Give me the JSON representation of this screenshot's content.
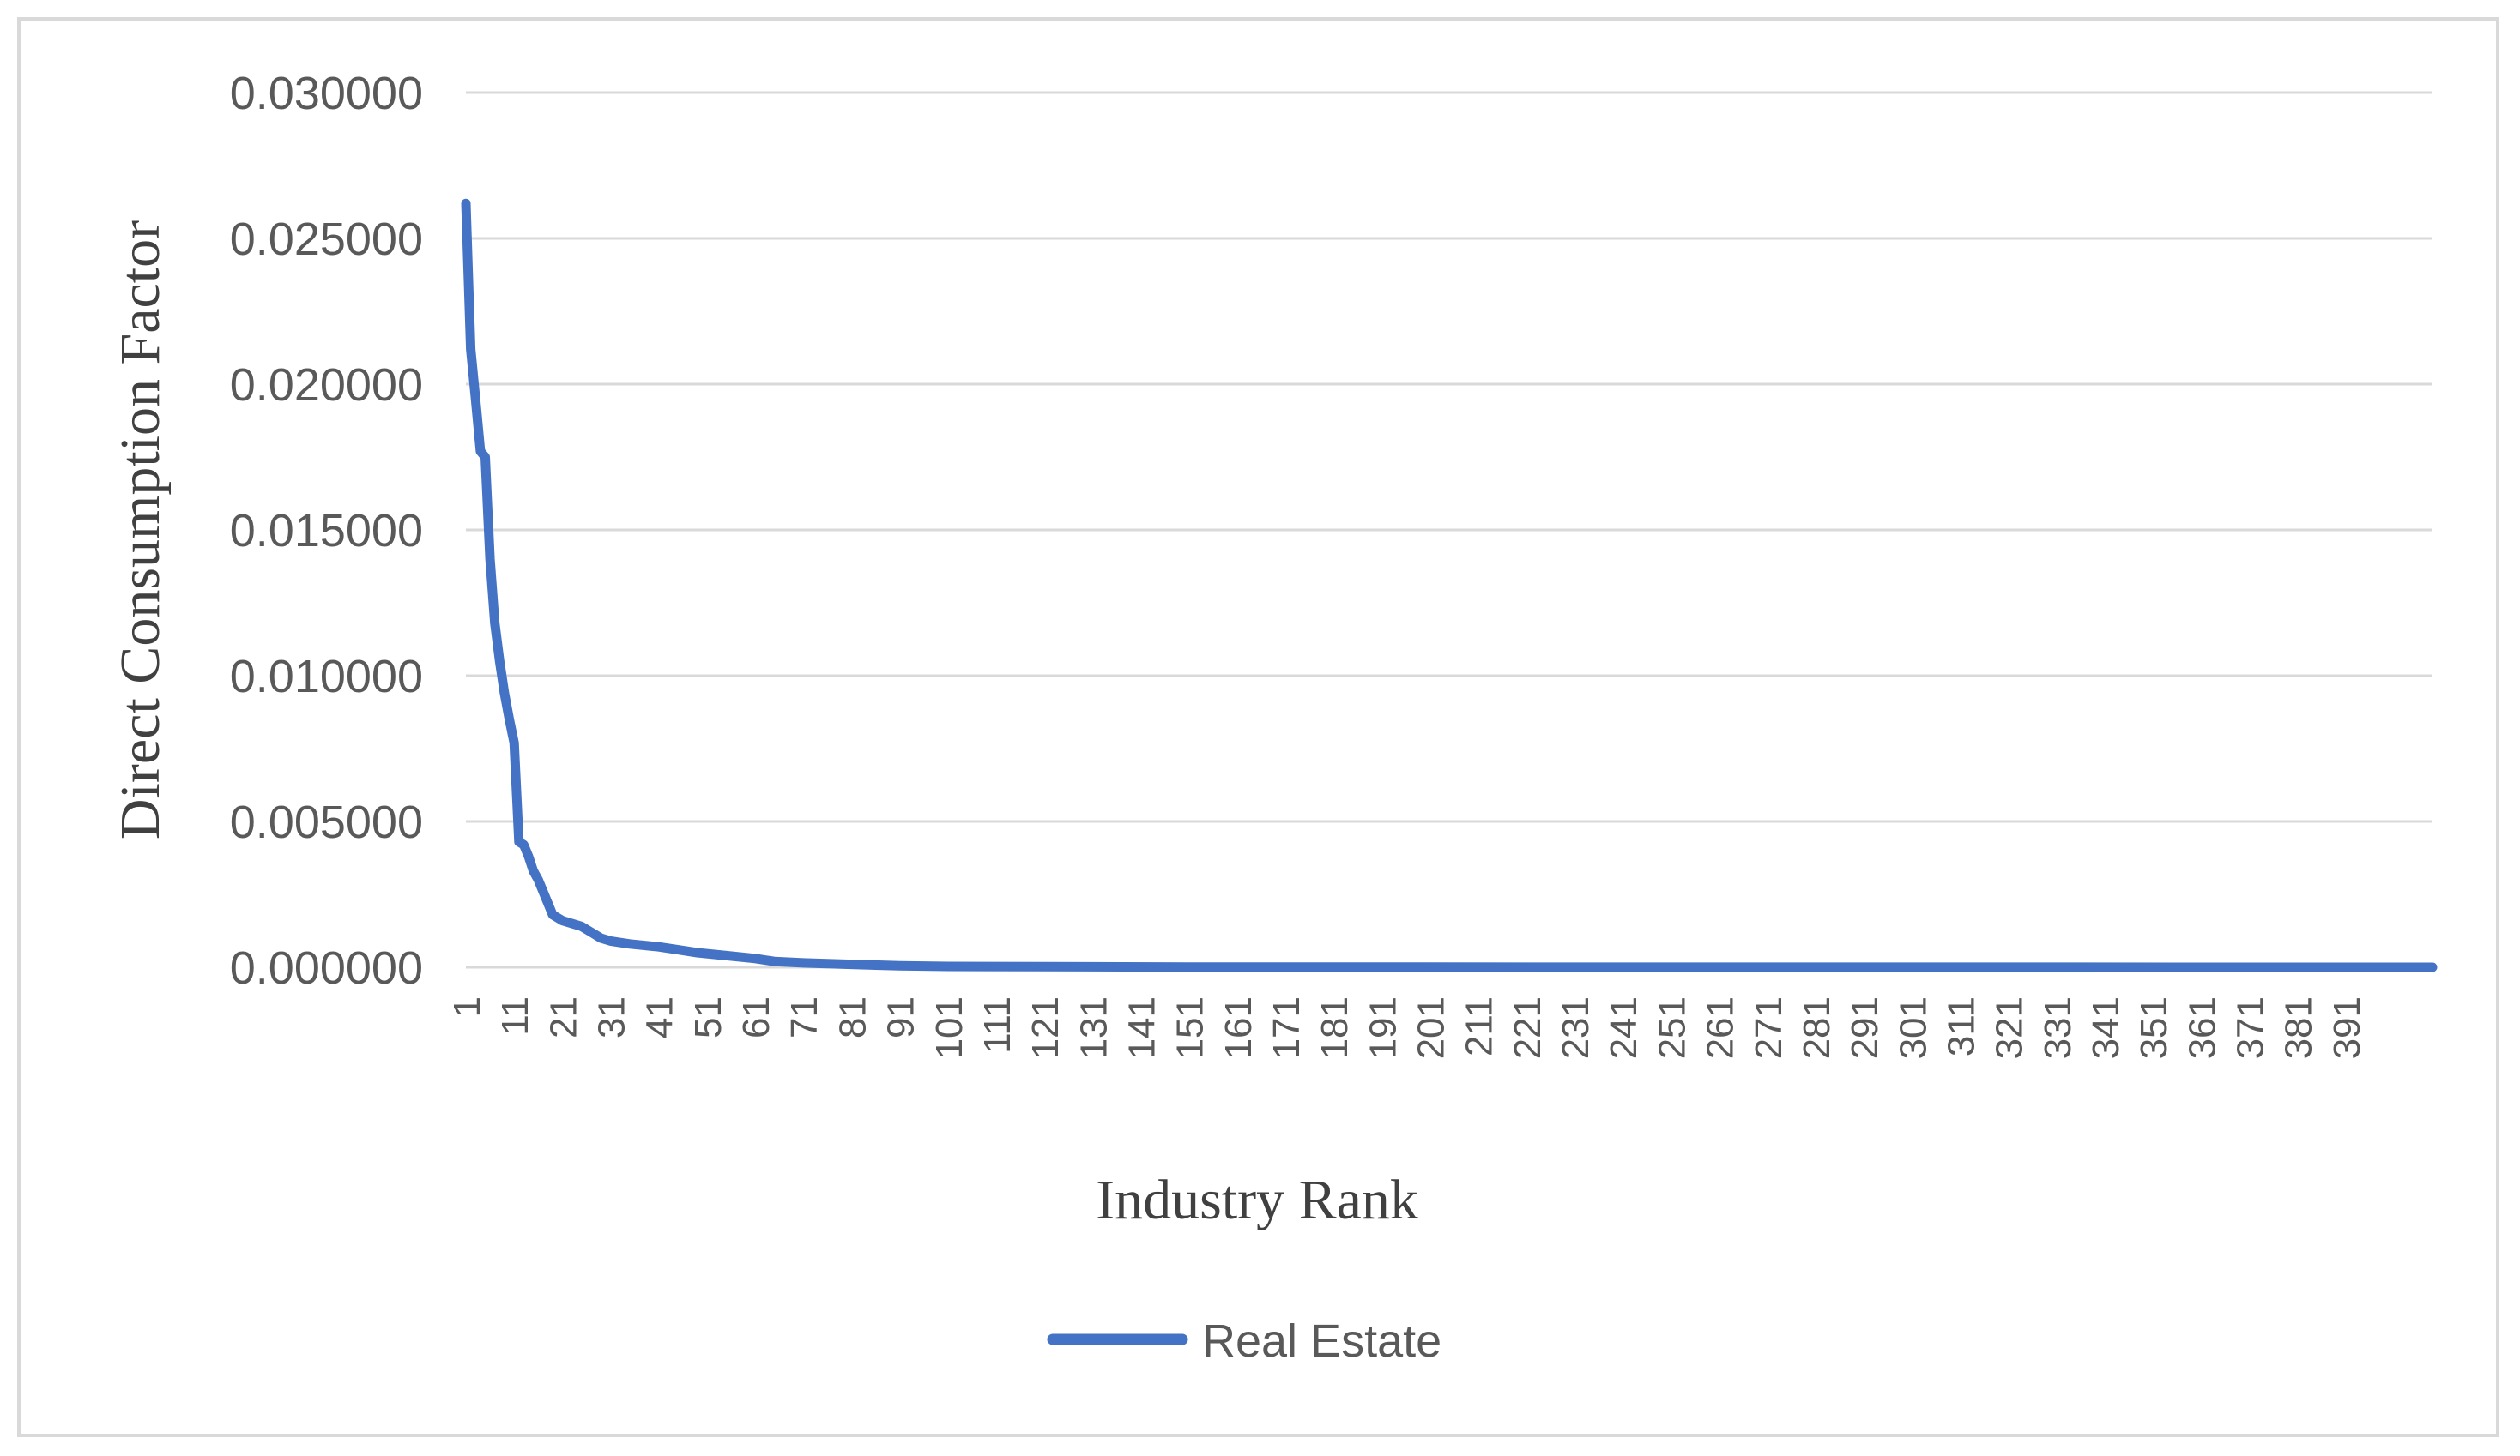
{
  "chart_data": {
    "type": "line",
    "title": "",
    "xlabel": "Industry Rank",
    "ylabel": "Direct Consumption Factor",
    "xlim": [
      1,
      409
    ],
    "ylim": [
      0,
      0.03
    ],
    "y_ticks": [
      "0.000000",
      "0.005000",
      "0.010000",
      "0.015000",
      "0.020000",
      "0.025000",
      "0.030000"
    ],
    "x_ticks": [
      1,
      11,
      21,
      31,
      41,
      51,
      61,
      71,
      81,
      91,
      101,
      111,
      121,
      131,
      141,
      151,
      161,
      171,
      181,
      191,
      201,
      211,
      221,
      231,
      241,
      251,
      261,
      271,
      281,
      291,
      301,
      311,
      321,
      331,
      341,
      351,
      361,
      371,
      381,
      391
    ],
    "grid": true,
    "legend_position": "bottom",
    "series": [
      {
        "name": "Real Estate",
        "color": "#4472c4",
        "points": [
          [
            1,
            0.0262
          ],
          [
            2,
            0.0212
          ],
          [
            3,
            0.0195
          ],
          [
            4,
            0.0177
          ],
          [
            5,
            0.0175
          ],
          [
            6,
            0.014
          ],
          [
            7,
            0.0118
          ],
          [
            8,
            0.0105
          ],
          [
            9,
            0.0094
          ],
          [
            10,
            0.0085
          ],
          [
            11,
            0.0077
          ],
          [
            12,
            0.0043
          ],
          [
            13,
            0.0042
          ],
          [
            14,
            0.0038
          ],
          [
            15,
            0.0033
          ],
          [
            16,
            0.003
          ],
          [
            17,
            0.0026
          ],
          [
            18,
            0.0022
          ],
          [
            19,
            0.0018
          ],
          [
            20,
            0.0017
          ],
          [
            21,
            0.0016
          ],
          [
            23,
            0.0015
          ],
          [
            25,
            0.0014
          ],
          [
            27,
            0.0012
          ],
          [
            29,
            0.001
          ],
          [
            31,
            0.0009
          ],
          [
            35,
            0.0008
          ],
          [
            41,
            0.0007
          ],
          [
            45,
            0.0006
          ],
          [
            49,
            0.0005
          ],
          [
            55,
            0.0004
          ],
          [
            61,
            0.0003
          ],
          [
            65,
            0.0002
          ],
          [
            71,
            0.00015
          ],
          [
            81,
            0.0001
          ],
          [
            91,
            5e-05
          ],
          [
            101,
            3e-05
          ],
          [
            121,
            2e-05
          ],
          [
            151,
            1e-05
          ],
          [
            201,
            5e-06
          ],
          [
            301,
            2e-06
          ],
          [
            409,
            1e-06
          ]
        ]
      }
    ]
  }
}
